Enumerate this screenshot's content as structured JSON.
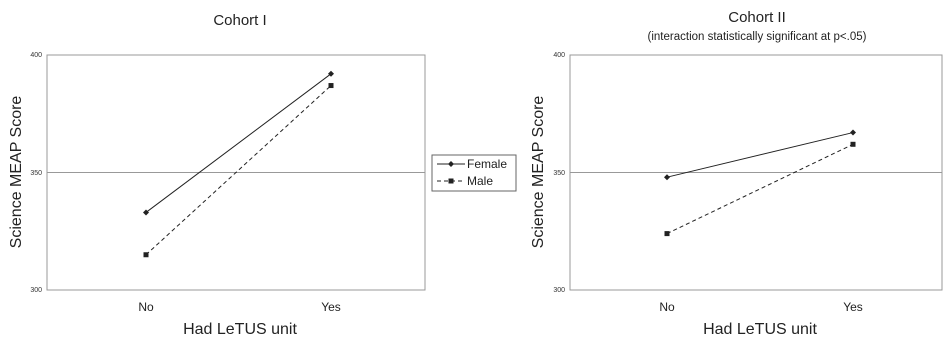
{
  "chart_data": [
    {
      "type": "line",
      "title": "Cohort I",
      "subtitle": "",
      "xlabel": "Had LeTUS unit",
      "ylabel": "Science MEAP Score",
      "categories": [
        "No",
        "Yes"
      ],
      "ylim": [
        300,
        400
      ],
      "yticks": [
        "300",
        "350",
        "400"
      ],
      "reference_line": 350,
      "series": [
        {
          "name": "Female",
          "values": [
            333,
            392
          ],
          "style": "solid",
          "marker": "diamond"
        },
        {
          "name": "Male",
          "values": [
            315,
            387
          ],
          "style": "dashed",
          "marker": "square"
        }
      ]
    },
    {
      "type": "line",
      "title": "Cohort II",
      "subtitle": "(interaction statistically significant at p<.05)",
      "xlabel": "Had LeTUS unit",
      "ylabel": "Science MEAP Score",
      "categories": [
        "No",
        "Yes"
      ],
      "ylim": [
        300,
        400
      ],
      "yticks": [
        "300",
        "350",
        "400"
      ],
      "reference_line": 350,
      "series": [
        {
          "name": "Female",
          "values": [
            348,
            367
          ],
          "style": "solid",
          "marker": "diamond"
        },
        {
          "name": "Male",
          "values": [
            324,
            362
          ],
          "style": "dashed",
          "marker": "square"
        }
      ]
    }
  ],
  "legend": {
    "placement": "center",
    "entries": [
      {
        "label": "Female",
        "style": "solid",
        "marker": "diamond"
      },
      {
        "label": "Male",
        "style": "dashed",
        "marker": "square"
      }
    ]
  },
  "colors": {
    "line": "#222222",
    "grid": "#999999"
  }
}
